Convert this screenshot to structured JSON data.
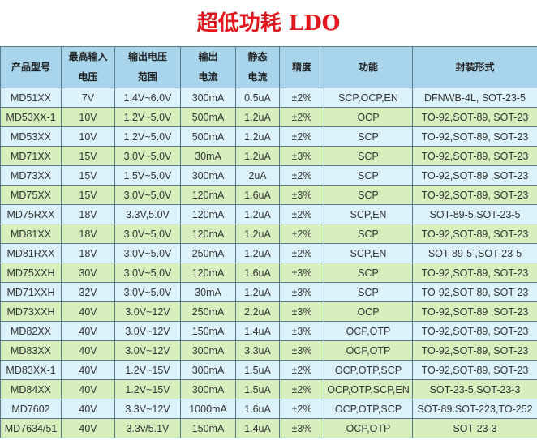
{
  "title": "超低功耗 LDO",
  "headers": [
    [
      "产品型号",
      ""
    ],
    [
      "最高输入",
      "电压"
    ],
    [
      "输出电压",
      "范围"
    ],
    [
      "输出",
      "电流"
    ],
    [
      "静态",
      "电流"
    ],
    [
      "精度",
      ""
    ],
    [
      "功能",
      ""
    ],
    [
      "封装形式",
      ""
    ]
  ],
  "colors": {
    "header": "#a8d5ec",
    "row_blue": "#dcf3fb",
    "row_green": "#d6efbd",
    "title": "#e0161c"
  },
  "rows": [
    [
      "MD51XX",
      "7V",
      "1.4V~6.0V",
      "300mA",
      "0.5uA",
      "±2%",
      "SCP,OCP,EN",
      "DFNWB-4L, SOT-23-5"
    ],
    [
      "MD53XX-1",
      "10V",
      "1.2V~5.0V",
      "500mA",
      "1.2uA",
      "±2%",
      "OCP",
      "TO-92,SOT-89, SOT-23"
    ],
    [
      "MD53XX",
      "10V",
      "1.2V~5.0V",
      "500mA",
      "1.2uA",
      "±2%",
      "SCP",
      "TO-92,SOT-89, SOT-23"
    ],
    [
      "MD71XX",
      "15V",
      "3.0V~5.0V",
      "30mA",
      "1.2uA",
      "±3%",
      "SCP",
      "TO-92,SOT-89, SOT-23"
    ],
    [
      "MD73XX",
      "15V",
      "1.5V~5.0V",
      "300mA",
      "2uA",
      "±2%",
      "SCP",
      "TO-92,SOT-89 ,SOT-23"
    ],
    [
      "MD75XX",
      "15V",
      "3.0V~5.0V",
      "120mA",
      "1.6uA",
      "±3%",
      "SCP",
      "TO-92,SOT-89, SOT-23"
    ],
    [
      "MD75RXX",
      "18V",
      "3.3V,5.0V",
      "120mA",
      "1.2uA",
      "±2%",
      "SCP,EN",
      "SOT-89-5,SOT-23-5"
    ],
    [
      "MD81XX",
      "18V",
      "3.0V~5.0V",
      "120mA",
      "1.2uA",
      "±2%",
      "SCP",
      "TO-92,SOT-89, SOT-23"
    ],
    [
      "MD81RXX",
      "18V",
      "3.0V~5.0V",
      "250mA",
      "1.2uA",
      "±2%",
      "SCP,EN",
      "SOT-89-5 ,SOT-23-5"
    ],
    [
      "MD75XXH",
      "30V",
      "3.0V~5.0V",
      "120mA",
      "1.6uA",
      "±3%",
      "SCP",
      "TO-92,SOT-89, SOT-23"
    ],
    [
      "MD71XXH",
      "32V",
      "3.0V~5.0V",
      "30mA",
      "1.2uA",
      "±3%",
      "SCP",
      "TO-92,SOT-89, SOT-23"
    ],
    [
      "MD73XXH",
      "40V",
      "3.0V~12V",
      "250mA",
      "2.2uA",
      "±3%",
      "OCP",
      "TO-92,SOT-89 ,SOT-23"
    ],
    [
      "MD82XX",
      "40V",
      "3.0V~12V",
      "150mA",
      "1.4uA",
      "±3%",
      "OCP,OTP",
      "TO-92,SOT-89, SOT-23"
    ],
    [
      "MD83XX",
      "40V",
      "3.0V~12V",
      "300mA",
      "3.3uA",
      "±3%",
      "OCP,OTP",
      "TO-92,SOT-89, SOT-23"
    ],
    [
      "MD83XX-1",
      "40V",
      "1.2V~15V",
      "300mA",
      "1.5uA",
      "±2%",
      "OCP,OTP,SCP",
      "TO-92,SOT-89, SOT-23"
    ],
    [
      "MD84XX",
      "40V",
      "1.2V~15V",
      "300mA",
      "1.5uA",
      "±2%",
      "OCP,OTP,SCP,EN",
      "SOT-23-5,SOT-23-3"
    ],
    [
      "MD7602",
      "40V",
      "3.3V~12V",
      "1000mA",
      "1.6uA",
      "±2%",
      "OCP,OTP,SCP",
      "SOT-89.SOT-223,TO-252"
    ],
    [
      "MD7634/51",
      "40V",
      "3.3v/5.1V",
      "150mA",
      "1.4uA",
      "±3%",
      "OCP,OTP",
      "SOT-23-3"
    ]
  ]
}
